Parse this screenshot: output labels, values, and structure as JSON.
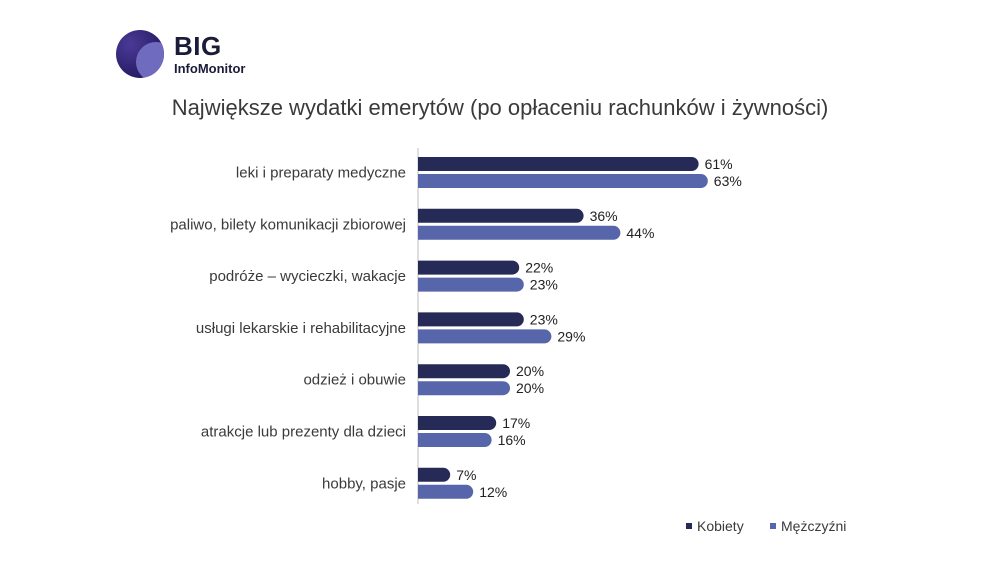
{
  "logo": {
    "brand": "BIG",
    "sub": "InfoMonitor"
  },
  "chart_data": {
    "type": "bar",
    "orientation": "horizontal",
    "title": "Największe wydatki emerytów (po opłaceniu rachunków i żywności)",
    "categories": [
      "leki i preparaty medyczne",
      "paliwo, bilety komunikacji zbiorowej",
      "podróże – wycieczki, wakacje",
      "usługi lekarskie i rehabilitacyjne",
      "odzież i obuwie",
      "atrakcje lub prezenty dla dzieci",
      "hobby, pasje"
    ],
    "series": [
      {
        "name": "Kobiety",
        "color": "#252a56",
        "values": [
          61,
          36,
          22,
          23,
          20,
          17,
          7
        ],
        "labels": [
          "61%",
          "36%",
          "22%",
          "23%",
          "20%",
          "17%",
          "7%"
        ]
      },
      {
        "name": "Mężczyźni",
        "color": "#5765aa",
        "values": [
          63,
          44,
          23,
          29,
          20,
          16,
          12
        ],
        "labels": [
          "63%",
          "44%",
          "23%",
          "29%",
          "20%",
          "16%",
          "12%"
        ]
      }
    ],
    "unit": "%",
    "legend_position": "bottom-right",
    "grid": false
  }
}
